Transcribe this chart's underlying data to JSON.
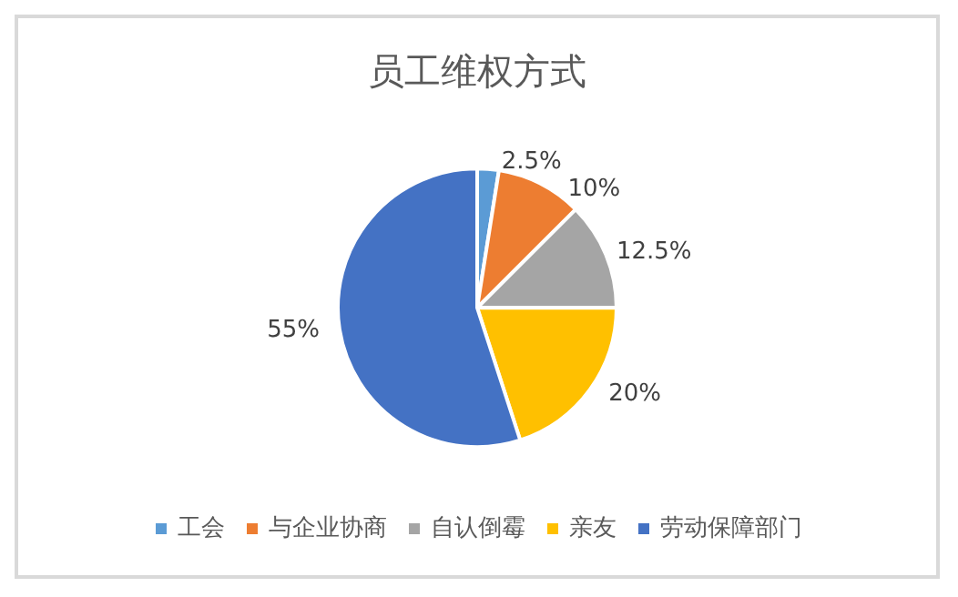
{
  "chart_data": {
    "type": "pie",
    "title": "员工维权方式",
    "categories": [
      "工会",
      "与企业协商",
      "自认倒霉",
      "亲友",
      "劳动保障部门"
    ],
    "values": [
      2.5,
      10,
      12.5,
      20,
      55
    ],
    "value_labels": [
      "2.5%",
      "10%",
      "12.5%",
      "20%",
      "55%"
    ],
    "colors": [
      "#5b9bd5",
      "#ed7d31",
      "#a5a5a5",
      "#ffc000",
      "#4472c4"
    ],
    "legend": "bottom"
  }
}
